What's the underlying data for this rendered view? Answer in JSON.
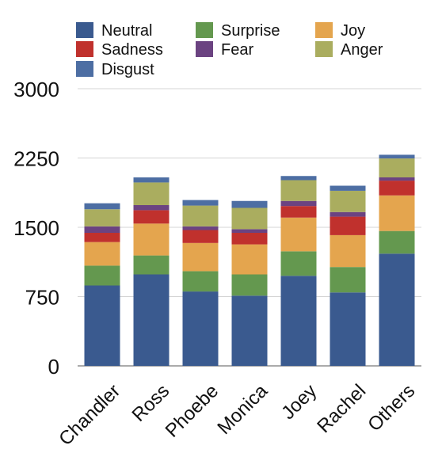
{
  "chart_data": {
    "type": "bar",
    "stacked": true,
    "categories": [
      "Chandler",
      "Ross",
      "Phoebe",
      "Monica",
      "Joey",
      "Rachel",
      "Others"
    ],
    "ylim": [
      0,
      3000
    ],
    "yticks": [
      0,
      750,
      1500,
      2250,
      3000
    ],
    "grid": true,
    "legend_position": "top",
    "series": [
      {
        "name": "Neutral",
        "color": "#3a5a8f",
        "values": [
          870,
          990,
          805,
          760,
          975,
          795,
          1215
        ]
      },
      {
        "name": "Surprise",
        "color": "#64984f",
        "values": [
          215,
          205,
          220,
          230,
          265,
          275,
          245
        ]
      },
      {
        "name": "Joy",
        "color": "#e4a54e",
        "values": [
          255,
          345,
          305,
          325,
          365,
          345,
          385
        ]
      },
      {
        "name": "Sadness",
        "color": "#c0312d",
        "values": [
          100,
          145,
          140,
          125,
          125,
          200,
          160
        ]
      },
      {
        "name": "Fear",
        "color": "#6b4381",
        "values": [
          70,
          55,
          40,
          40,
          55,
          50,
          35
        ]
      },
      {
        "name": "Anger",
        "color": "#aaad5f",
        "values": [
          185,
          245,
          225,
          230,
          225,
          230,
          205
        ]
      },
      {
        "name": "Disgust",
        "color": "#4d6ea3",
        "values": [
          65,
          55,
          60,
          75,
          45,
          55,
          40
        ]
      }
    ]
  }
}
